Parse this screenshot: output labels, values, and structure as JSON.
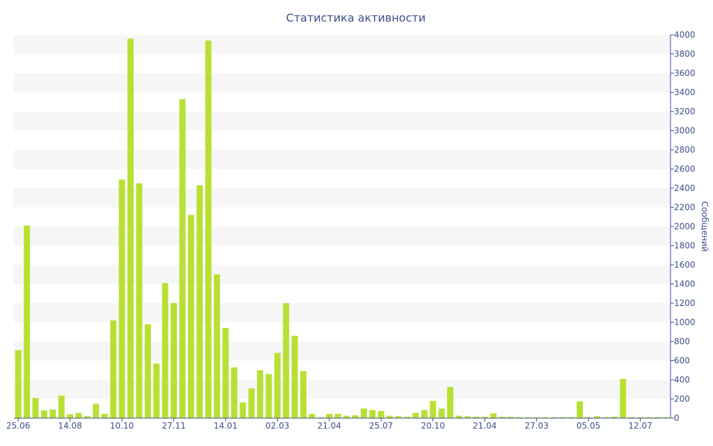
{
  "chart_data": {
    "type": "bar",
    "title": "Статистика активности",
    "xlabel": "",
    "ylabel": "Сообщений",
    "y_axis_side": "right",
    "ylim": [
      0,
      4000
    ],
    "y_ticks": [
      0,
      200,
      400,
      600,
      800,
      1000,
      1200,
      1400,
      1600,
      1800,
      2000,
      2200,
      2400,
      2600,
      2800,
      3000,
      3200,
      3400,
      3600,
      3800,
      4000
    ],
    "x_ticks": [
      {
        "label": "25.06",
        "index": 0
      },
      {
        "label": "14.08",
        "index": 6
      },
      {
        "label": "10.10",
        "index": 12
      },
      {
        "label": "27.11",
        "index": 18
      },
      {
        "label": "14.01",
        "index": 24
      },
      {
        "label": "02.03",
        "index": 30
      },
      {
        "label": "21.04",
        "index": 36
      },
      {
        "label": "25.07",
        "index": 42
      },
      {
        "label": "20.10",
        "index": 48
      },
      {
        "label": "21.04",
        "index": 54
      },
      {
        "label": "27.03",
        "index": 60
      },
      {
        "label": "05.05",
        "index": 66
      },
      {
        "label": "12.07",
        "index": 72
      }
    ],
    "values": [
      710,
      2010,
      210,
      80,
      90,
      235,
      40,
      55,
      20,
      150,
      45,
      1020,
      2490,
      3960,
      2450,
      980,
      570,
      1410,
      1200,
      3330,
      2120,
      2430,
      3940,
      1500,
      940,
      530,
      165,
      310,
      500,
      460,
      680,
      1200,
      860,
      490,
      45,
      10,
      45,
      45,
      25,
      30,
      100,
      85,
      75,
      25,
      20,
      15,
      55,
      85,
      180,
      100,
      325,
      25,
      20,
      15,
      15,
      50,
      15,
      15,
      10,
      10,
      10,
      10,
      10,
      10,
      10,
      175,
      10,
      20,
      10,
      15,
      410,
      10,
      10,
      10,
      10,
      10
    ],
    "grid": "alternating horizontal bands",
    "legend": "none",
    "colors": {
      "bar": "#b8e034",
      "band": "#f6f6f6",
      "text": "#3a4f8a",
      "axis": "#3a4f8a"
    }
  }
}
